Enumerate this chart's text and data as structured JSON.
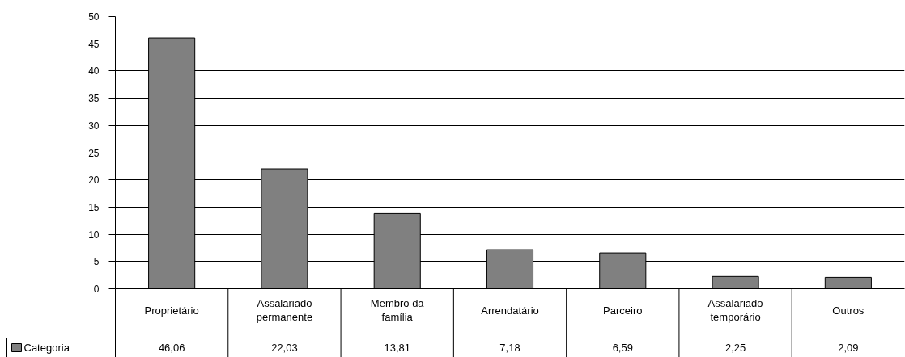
{
  "chart_data": {
    "type": "bar",
    "categories": [
      "Proprietário",
      "Assalariado permanente",
      "Membro da família",
      "Arrendatário",
      "Parceiro",
      "Assalariado temporário",
      "Outros"
    ],
    "series": [
      {
        "name": "Categoria",
        "color": "#808080",
        "values": [
          46.06,
          22.03,
          13.81,
          7.18,
          6.59,
          2.25,
          2.09
        ],
        "value_labels": [
          "46,06",
          "22,03",
          "13,81",
          "7,18",
          "6,59",
          "2,25",
          "2,09"
        ]
      }
    ],
    "ylim": [
      0,
      50
    ],
    "yticks": [
      0,
      5,
      10,
      15,
      20,
      25,
      30,
      35,
      40,
      45,
      50
    ],
    "grid": "y",
    "legend": "bottom left"
  }
}
